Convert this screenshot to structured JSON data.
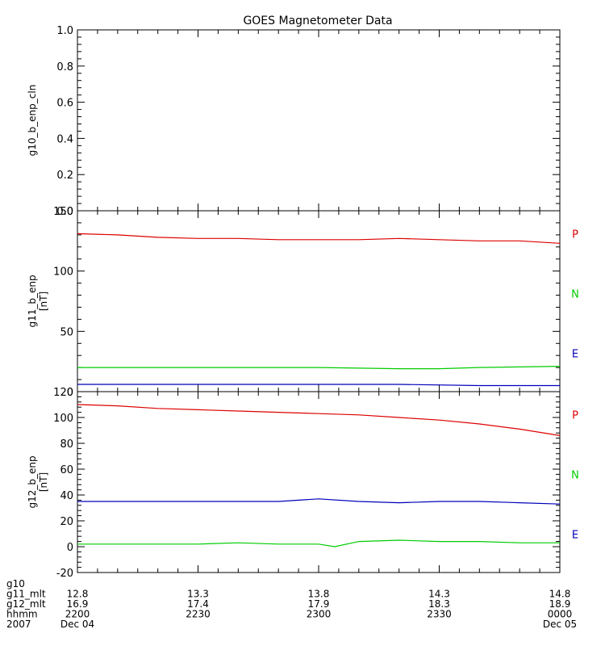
{
  "title": "GOES Magnetometer Data",
  "chart_data": [
    {
      "type": "line",
      "ylabel": "g10_b_enp_cln",
      "yunit": "",
      "ylim": [
        0.0,
        1.0
      ],
      "yticks": [
        "0.0",
        "0.2",
        "0.4",
        "0.6",
        "0.8",
        "1.0"
      ],
      "series": []
    },
    {
      "type": "line",
      "ylabel": "g11_b_enp",
      "yunit": "[nT]",
      "ylim": [
        0,
        150
      ],
      "yticks": [
        "0",
        "50",
        "100",
        "150"
      ],
      "series": [
        {
          "name": "P",
          "color": "#dd0000",
          "x": [
            0,
            10,
            20,
            30,
            40,
            50,
            60,
            70,
            80,
            90,
            100,
            110,
            120
          ],
          "y": [
            131,
            130,
            128,
            127,
            127,
            126,
            126,
            126,
            127,
            126,
            125,
            125,
            123
          ]
        },
        {
          "name": "N",
          "color": "#00cc00",
          "x": [
            0,
            20,
            40,
            60,
            80,
            90,
            100,
            120
          ],
          "y": [
            20,
            20,
            20,
            20,
            19,
            19,
            20,
            21
          ]
        },
        {
          "name": "E",
          "color": "#0000bb",
          "x": [
            0,
            20,
            40,
            60,
            80,
            100,
            120
          ],
          "y": [
            6,
            6,
            6,
            6,
            6,
            5,
            5
          ]
        }
      ]
    },
    {
      "type": "line",
      "ylabel": "g12_b_enp",
      "yunit": "[nT]",
      "ylim": [
        -20,
        120
      ],
      "yticks": [
        "-20",
        "0",
        "20",
        "40",
        "60",
        "80",
        "100",
        "120"
      ],
      "series": [
        {
          "name": "P",
          "color": "#dd0000",
          "x": [
            0,
            10,
            20,
            30,
            40,
            50,
            60,
            70,
            80,
            90,
            100,
            110,
            120
          ],
          "y": [
            110,
            109,
            107,
            106,
            105,
            104,
            103,
            102,
            100,
            98,
            95,
            91,
            86
          ]
        },
        {
          "name": "N",
          "color": "#00cc00",
          "x": [
            0,
            10,
            20,
            30,
            40,
            50,
            60,
            64,
            70,
            80,
            90,
            100,
            110,
            120
          ],
          "y": [
            2,
            2,
            2,
            2,
            3,
            2,
            2,
            0,
            4,
            5,
            4,
            4,
            3,
            3
          ]
        },
        {
          "name": "E",
          "color": "#0000bb",
          "x": [
            0,
            10,
            20,
            30,
            40,
            50,
            60,
            70,
            80,
            90,
            100,
            110,
            120
          ],
          "y": [
            35,
            35,
            35,
            35,
            35,
            35,
            37,
            35,
            34,
            35,
            35,
            34,
            33
          ]
        }
      ]
    }
  ],
  "x_axis": {
    "xlim": [
      0,
      120
    ],
    "tick_positions": [
      0,
      30,
      60,
      90,
      120
    ],
    "rows": [
      {
        "label": "g10",
        "values": [
          "",
          "",
          "",
          "",
          ""
        ]
      },
      {
        "label": "g11_mlt",
        "values": [
          "12.8",
          "13.3",
          "13.8",
          "14.3",
          "14.8"
        ]
      },
      {
        "label": "g12_mlt",
        "values": [
          "16.9",
          "17.4",
          "17.9",
          "18.3",
          "18.9"
        ]
      },
      {
        "label": "hhmm",
        "values": [
          "2200",
          "2230",
          "2300",
          "2330",
          "0000"
        ]
      },
      {
        "label": "2007",
        "values": [
          "Dec 04",
          "",
          "",
          "",
          "Dec 05"
        ]
      }
    ]
  }
}
